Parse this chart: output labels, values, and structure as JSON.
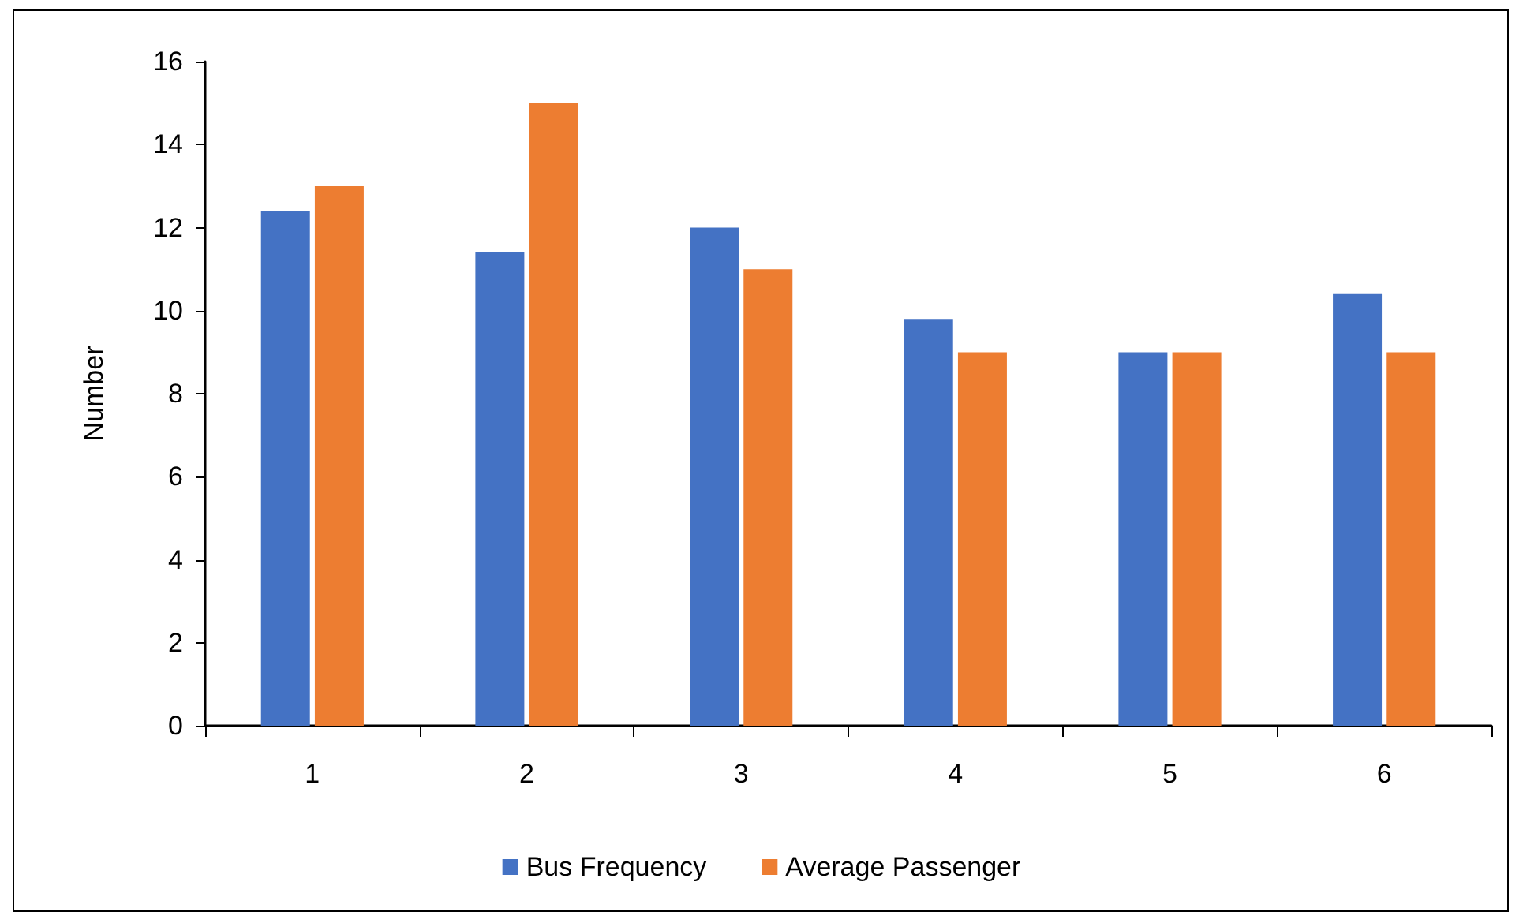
{
  "chart_data": {
    "type": "bar",
    "ylabel": "Number",
    "categories": [
      "1",
      "2",
      "3",
      "4",
      "5",
      "6"
    ],
    "series": [
      {
        "name": "Bus Frequency",
        "color": "#4472c4",
        "values": [
          12.4,
          11.4,
          12,
          9.8,
          9,
          10.4
        ]
      },
      {
        "name": "Average Passenger",
        "color": "#ed7d31",
        "values": [
          13,
          15,
          11,
          9,
          9,
          9
        ]
      }
    ],
    "ylim": [
      0,
      16
    ],
    "yticks": [
      0,
      2,
      4,
      6,
      8,
      10,
      12,
      14,
      16
    ],
    "grid": false,
    "legend": "bottom"
  }
}
